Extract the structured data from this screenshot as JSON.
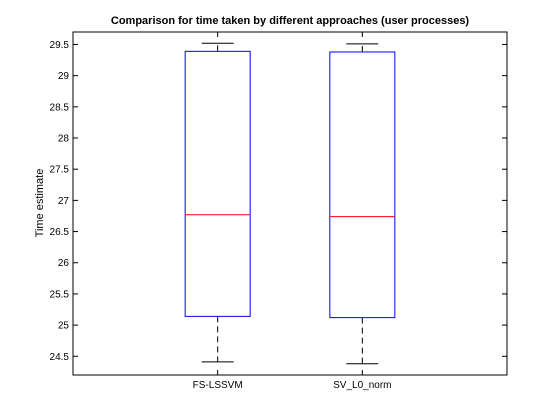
{
  "chart_data": {
    "type": "box",
    "title": "Comparison for time taken by different approaches (user processes)",
    "xlabel": "",
    "ylabel": "Time estimate",
    "ylim": [
      24.2,
      29.7
    ],
    "yticks": [
      24.5,
      25,
      25.5,
      26,
      26.5,
      27,
      27.5,
      28,
      28.5,
      29,
      29.5
    ],
    "ytick_labels": [
      "24.5",
      "25",
      "25.5",
      "26",
      "26.5",
      "27",
      "27.5",
      "28",
      "28.5",
      "29",
      "29.5"
    ],
    "categories": [
      "FS-LSSVM",
      "SV_L0_norm"
    ],
    "boxes": [
      {
        "label": "FS-LSSVM",
        "whisker_low": 24.41,
        "q1": 25.14,
        "median": 26.77,
        "q3": 29.39,
        "whisker_high": 29.52
      },
      {
        "label": "SV_L0_norm",
        "whisker_low": 24.38,
        "q1": 25.12,
        "median": 26.74,
        "q3": 29.38,
        "whisker_high": 29.51
      }
    ],
    "colors": {
      "box": "#0000ff",
      "median": "#ff0000",
      "whisker": "#000000"
    },
    "grid": false
  }
}
